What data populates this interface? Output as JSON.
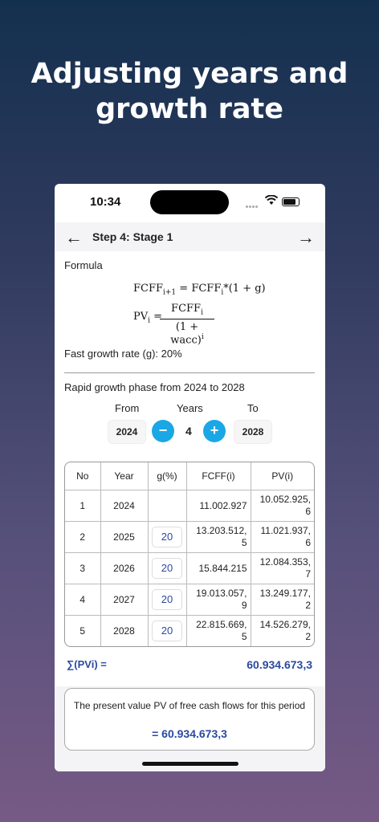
{
  "headline": {
    "line1": "Adjusting years and",
    "line2": "growth rate"
  },
  "status": {
    "time": "10:34"
  },
  "nav": {
    "back_icon": "←",
    "title": "Step 4: Stage 1",
    "forward_icon": "→"
  },
  "formula": {
    "label": "Formula",
    "eq1_left": "FCFF",
    "eq1_left_sub": "i+1",
    "eq1_mid": " = FCFF",
    "eq1_mid_sub": "i",
    "eq1_right": "*(1 + g)",
    "eq2_left": "PV",
    "eq2_left_sub": "i",
    "eq2_eq": "=",
    "eq2_num": "FCFF",
    "eq2_num_sub": "i",
    "eq2_den": "(1 + wacc)",
    "eq2_den_sup": "i"
  },
  "growth": {
    "label": "Fast growth rate (g):",
    "value": "20%"
  },
  "phase": {
    "text": "Rapid growth phase from 2024 to 2028",
    "from_label": "From",
    "years_label": "Years",
    "to_label": "To",
    "from_value": "2024",
    "years_value": "4",
    "to_value": "2028",
    "minus": "−",
    "plus": "+"
  },
  "table": {
    "headers": [
      "No",
      "Year",
      "g(%)",
      "FCFF(i)",
      "PV(i)"
    ],
    "rows": [
      {
        "no": "1",
        "year": "2024",
        "g": "",
        "fcff": "11.002.927",
        "pv": "10.052.925,\n6"
      },
      {
        "no": "2",
        "year": "2025",
        "g": "20",
        "fcff": "13.203.512,\n5",
        "pv": "11.021.937,\n6"
      },
      {
        "no": "3",
        "year": "2026",
        "g": "20",
        "fcff": "15.844.215",
        "pv": "12.084.353,\n7"
      },
      {
        "no": "4",
        "year": "2027",
        "g": "20",
        "fcff": "19.013.057,\n9",
        "pv": "13.249.177,\n2"
      },
      {
        "no": "5",
        "year": "2028",
        "g": "20",
        "fcff": "22.815.669,\n5",
        "pv": "14.526.279,\n2"
      }
    ]
  },
  "sum": {
    "label": "∑(PVi) =",
    "value": "60.934.673,3"
  },
  "result": {
    "text": "The present value PV of free cash flows for this period",
    "value": "= 60.934.673,3"
  },
  "colors": {
    "accent": "#1aa7e6",
    "value_blue": "#2b4aa0"
  }
}
